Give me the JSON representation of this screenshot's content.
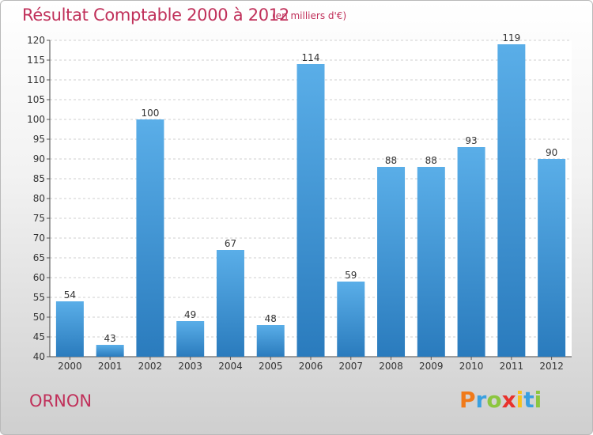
{
  "header": {
    "title": "Résultat Comptable 2000 à 2012",
    "subtitle": "(en milliers d'€)"
  },
  "footer": {
    "commune": "ORNON",
    "logo_text": "Proxiti",
    "logo_letters": [
      {
        "char": "P",
        "color": "#f07a1a"
      },
      {
        "char": "r",
        "color": "#3aa0e0"
      },
      {
        "char": "o",
        "color": "#8cc63f"
      },
      {
        "char": "x",
        "color": "#e8322c"
      },
      {
        "char": "i",
        "color": "#f7c21c"
      },
      {
        "char": "t",
        "color": "#3aa0e0"
      },
      {
        "char": "i",
        "color": "#8cc63f"
      }
    ]
  },
  "colors": {
    "accent": "#c0305a",
    "bar_light": "#5aaee8",
    "bar_dark": "#2a7bbd"
  },
  "chart_data": {
    "type": "bar",
    "title": "Résultat Comptable 2000 à 2012",
    "subtitle": "(en milliers d'€)",
    "categories": [
      "2000",
      "2001",
      "2002",
      "2003",
      "2004",
      "2005",
      "2006",
      "2007",
      "2008",
      "2009",
      "2010",
      "2011",
      "2012"
    ],
    "values": [
      54,
      43,
      100,
      49,
      67,
      48,
      114,
      59,
      88,
      88,
      93,
      119,
      90
    ],
    "data_labels": [
      "54",
      "43",
      "100",
      "49",
      "67",
      "48",
      "114",
      "59",
      "88",
      "88",
      "93",
      "119",
      "90"
    ],
    "ylim": [
      40,
      120
    ],
    "yticks": [
      40,
      45,
      50,
      55,
      60,
      65,
      70,
      75,
      80,
      85,
      90,
      95,
      100,
      105,
      110,
      115,
      120
    ],
    "grid": "horizontal-dashed",
    "xlabel": "",
    "ylabel": ""
  }
}
